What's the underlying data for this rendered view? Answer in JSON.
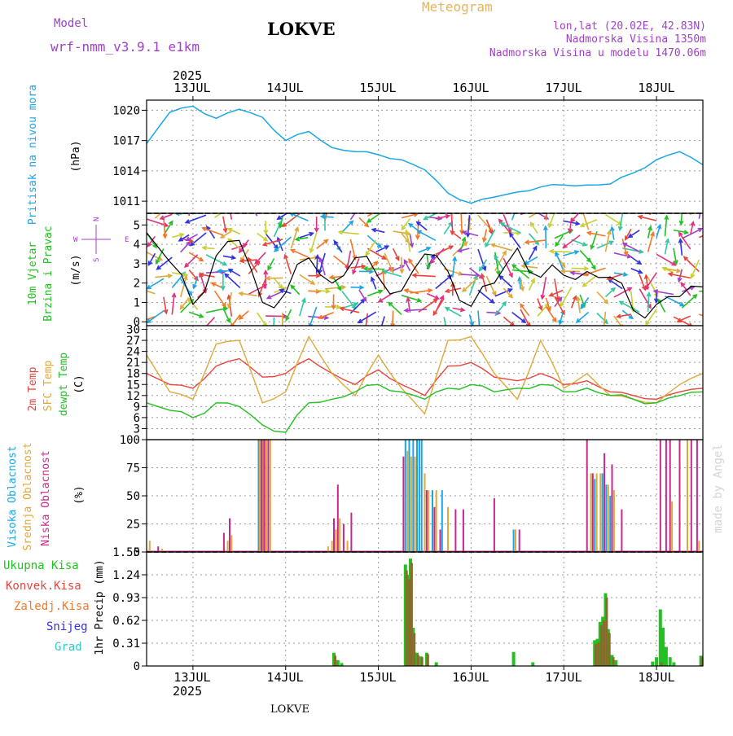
{
  "header": {
    "model_label": "Model",
    "model_name": "wrf-nmm_v3.9.1 e1km",
    "station": "LOKVE",
    "product": "Meteogram",
    "lonlat": "lon,lat (20.02E, 42.83N)",
    "altitude": "Nadmorska Visina 1350m",
    "model_altitude": "Nadmorska Visina u modelu 1470.06m",
    "watermark": "made by Angel",
    "footer_station": "LOKVE"
  },
  "colors": {
    "pressure": "#1aa6e6",
    "temp2m": "#e8443a",
    "sfc": "#e0a838",
    "dewpt": "#22c022",
    "high_cloud": "#1aa6e6",
    "mid_cloud": "#e0a838",
    "low_cloud": "#c8288c",
    "total_rain": "#22c022",
    "conv_rain": "#e8443a",
    "strat_rain": "#f07828",
    "snow": "#3030e0",
    "hail": "#30c8c8",
    "purple_text": "#a040c8",
    "gold_text": "#e6b45a"
  },
  "axis": {
    "year": "2025",
    "days": [
      "13JUL",
      "14JUL",
      "15JUL",
      "16JUL",
      "17JUL",
      "18JUL"
    ]
  },
  "panels": {
    "pressure": {
      "ylabel_name": "Pritisak na nivou mora",
      "unit": "(hPa)",
      "ticks": [
        "1011",
        "1014",
        "1017",
        "1020"
      ]
    },
    "wind": {
      "ylabel_name_1": "10m Vjetar",
      "ylabel_name_2": "Brzina i Pravac",
      "unit": "(m/s)",
      "compass_n": "N",
      "compass_w": "W",
      "compass_e": "E",
      "compass_s": "S",
      "ticks": [
        "0",
        "1",
        "2",
        "3",
        "4",
        "5"
      ]
    },
    "temperature": {
      "label_1": "2m Temp",
      "label_2": "SFC Temp",
      "label_3": "dewpt Temp",
      "unit": "(C)",
      "ticks": [
        "3",
        "6",
        "9",
        "12",
        "15",
        "18",
        "21",
        "24",
        "27",
        "30"
      ]
    },
    "cloud": {
      "label_1": "Visoka Oblacnost",
      "label_2": "Srednja Oblacnost",
      "label_3": "Niska Oblacnost",
      "unit": "(%)",
      "ticks": [
        "0",
        "25",
        "50",
        "75",
        "100"
      ]
    },
    "precip": {
      "legend_total": "Ukupna Kisa",
      "legend_conv": "Konvek.Kisa",
      "legend_strat": "Zaledj.Kisa",
      "legend_snow": "Snijeg",
      "legend_hail": "Grad",
      "unit": "1hr Precip (mm)",
      "ticks": [
        "0",
        "0.31",
        "0.62",
        "0.93",
        "1.24",
        "1.55"
      ]
    }
  },
  "chart_data": [
    {
      "type": "line",
      "title": "",
      "ylabel": "Pritisak na nivou mora (hPa)",
      "ylim": [
        1009.8,
        1021
      ],
      "xlim": [
        0,
        144
      ],
      "x": [
        0,
        6,
        12,
        18,
        24,
        30,
        36,
        42,
        48,
        54,
        60,
        66,
        72,
        78,
        84,
        90,
        96,
        102,
        108,
        114,
        120,
        126,
        132,
        138,
        144
      ],
      "series": [
        {
          "name": "",
          "values": [
            1016.7,
            1019.8,
            1020.4,
            1019.2,
            1020.1,
            1019.3,
            1017.0,
            1017.9,
            1016.3,
            1015.9,
            1015.6,
            1015.1,
            1014.1,
            1011.8,
            1010.8,
            1011.4,
            1011.9,
            1012.4,
            1012.6,
            1012.6,
            1012.7,
            1013.8,
            1015.1,
            1015.9,
            1014.6
          ]
        }
      ]
    },
    {
      "type": "line",
      "ylabel": "10m Vjetar Brzina i Pravac (m/s)",
      "ylim": [
        -0.2,
        5.6
      ],
      "xlim": [
        0,
        144
      ],
      "x": [
        0,
        6,
        12,
        18,
        24,
        30,
        36,
        42,
        48,
        54,
        60,
        66,
        72,
        78,
        84,
        90,
        96,
        102,
        108,
        114,
        120,
        126,
        132,
        138,
        144
      ],
      "series": [
        {
          "name": "",
          "values": [
            4.6,
            3.1,
            0.9,
            3.4,
            4.2,
            1.0,
            1.5,
            3.3,
            2.0,
            3.3,
            2.3,
            1.6,
            3.5,
            2.6,
            0.8,
            2.0,
            3.8,
            2.3,
            2.4,
            2.6,
            2.3,
            0.6,
            0.9,
            1.3,
            1.8
          ]
        }
      ]
    },
    {
      "type": "line",
      "ylabel": "(C)",
      "ylim": [
        0,
        31
      ],
      "xlim": [
        0,
        144
      ],
      "x": [
        0,
        6,
        12,
        18,
        24,
        30,
        36,
        42,
        48,
        54,
        60,
        66,
        72,
        78,
        84,
        90,
        96,
        102,
        108,
        114,
        120,
        126,
        132,
        138,
        144
      ],
      "series": [
        {
          "name": "2m Temp",
          "values": [
            18,
            15,
            14,
            20,
            22,
            17,
            18,
            22,
            18,
            15,
            19,
            15,
            12,
            20,
            21,
            17,
            16,
            18,
            15,
            16,
            13,
            12,
            11,
            13,
            14
          ]
        },
        {
          "name": "SFC Temp",
          "values": [
            23,
            13,
            11,
            26,
            27,
            10,
            13,
            28,
            18,
            12,
            23,
            14,
            7,
            27,
            28,
            18,
            11,
            27,
            14,
            18,
            12,
            11,
            10,
            15,
            18
          ]
        },
        {
          "name": "dewpt Temp",
          "values": [
            10,
            8,
            6,
            10,
            9,
            4,
            2,
            10,
            11,
            13,
            15,
            13,
            11,
            14,
            15,
            13,
            14,
            15,
            13,
            14,
            12,
            11,
            10,
            12,
            13
          ]
        }
      ]
    },
    {
      "type": "bar",
      "ylabel": "(%)",
      "ylim": [
        0,
        100
      ],
      "xlim": [
        0,
        144
      ],
      "series": [
        {
          "name": "Visoka Oblacnost",
          "points": [
            [
              29,
              100
            ],
            [
              29.6,
              100
            ],
            [
              30.2,
              100
            ],
            [
              67,
              100
            ],
            [
              68,
              100
            ],
            [
              69,
              100
            ],
            [
              70,
              100
            ],
            [
              70.6,
              100
            ],
            [
              71.2,
              100
            ],
            [
              74,
              55
            ],
            [
              76.5,
              55
            ],
            [
              95,
              20
            ],
            [
              116,
              65
            ],
            [
              118,
              70
            ],
            [
              119,
              60
            ],
            [
              120,
              50
            ]
          ]
        },
        {
          "name": "Srednja Oblacnost",
          "points": [
            [
              0.8,
              10
            ],
            [
              4,
              3
            ],
            [
              21,
              10
            ],
            [
              22,
              15
            ],
            [
              29.3,
              100
            ],
            [
              30,
              100
            ],
            [
              31,
              100
            ],
            [
              32,
              100
            ],
            [
              47,
              5
            ],
            [
              48,
              10
            ],
            [
              49,
              20
            ],
            [
              50,
              30
            ],
            [
              52,
              10
            ],
            [
              67.5,
              90
            ],
            [
              68.5,
              85
            ],
            [
              69.5,
              85
            ],
            [
              72,
              70
            ],
            [
              73,
              55
            ],
            [
              75,
              55
            ],
            [
              78,
              40
            ],
            [
              95.5,
              20
            ],
            [
              115,
              70
            ],
            [
              116.5,
              70
            ],
            [
              117.5,
              70
            ],
            [
              119.5,
              60
            ],
            [
              121,
              55
            ],
            [
              136,
              45
            ],
            [
              140,
              100
            ],
            [
              143,
              10
            ]
          ]
        },
        {
          "name": "Niska Oblacnost",
          "points": [
            [
              3,
              5
            ],
            [
              20,
              17
            ],
            [
              21.5,
              30
            ],
            [
              29.8,
              100
            ],
            [
              30.5,
              100
            ],
            [
              31.5,
              100
            ],
            [
              48.5,
              30
            ],
            [
              49.5,
              60
            ],
            [
              51,
              25
            ],
            [
              53,
              35
            ],
            [
              66.5,
              85
            ],
            [
              72.5,
              55
            ],
            [
              74.5,
              40
            ],
            [
              76,
              20
            ],
            [
              80,
              38
            ],
            [
              82,
              38
            ],
            [
              90,
              48
            ],
            [
              96.5,
              20
            ],
            [
              114,
              100
            ],
            [
              115.5,
              70
            ],
            [
              118.5,
              88
            ],
            [
              120.5,
              78
            ],
            [
              123,
              38
            ],
            [
              133,
              100
            ],
            [
              134.5,
              100
            ],
            [
              135.5,
              100
            ],
            [
              138,
              100
            ],
            [
              141,
              100
            ],
            [
              142.5,
              100
            ]
          ]
        }
      ]
    },
    {
      "type": "bar",
      "ylabel": "1hr Precip (mm)",
      "ylim": [
        0,
        1.55
      ],
      "xlim": [
        0,
        144
      ],
      "series": [
        {
          "name": "Ukupna Kisa",
          "points": [
            [
              48.5,
              0.18
            ],
            [
              49.5,
              0.08
            ],
            [
              50.5,
              0.04
            ],
            [
              67,
              1.38
            ],
            [
              67.7,
              1.24
            ],
            [
              68.3,
              1.46
            ],
            [
              69,
              0.52
            ],
            [
              70,
              0.18
            ],
            [
              71,
              0.13
            ],
            [
              72.5,
              0.18
            ],
            [
              75,
              0.05
            ],
            [
              95,
              0.19
            ],
            [
              100,
              0.05
            ],
            [
              116,
              0.35
            ],
            [
              116.7,
              0.37
            ],
            [
              117.4,
              0.6
            ],
            [
              118.1,
              0.67
            ],
            [
              118.8,
              0.99
            ],
            [
              119.5,
              0.5
            ],
            [
              120.5,
              0.15
            ],
            [
              121.5,
              0.08
            ],
            [
              131,
              0.06
            ],
            [
              132,
              0.12
            ],
            [
              133,
              0.77
            ],
            [
              133.7,
              0.52
            ],
            [
              134.5,
              0.26
            ],
            [
              135.5,
              0.12
            ],
            [
              136.5,
              0.05
            ],
            [
              143.5,
              0.14
            ]
          ]
        },
        {
          "name": "Konvek.Kisa",
          "points": [
            [
              48.8,
              0.14
            ],
            [
              67.3,
              1.3
            ],
            [
              68,
              1.18
            ],
            [
              68.6,
              1.4
            ],
            [
              69.3,
              0.45
            ],
            [
              70.3,
              0.15
            ],
            [
              71.3,
              0.12
            ],
            [
              72.8,
              0.16
            ],
            [
              116.3,
              0.3
            ],
            [
              117,
              0.32
            ],
            [
              117.7,
              0.55
            ],
            [
              118.4,
              0.62
            ],
            [
              119.1,
              0.93
            ],
            [
              119.8,
              0.45
            ],
            [
              120.8,
              0.12
            ],
            [
              133.3,
              0.05
            ],
            [
              143.8,
              0.12
            ]
          ]
        }
      ]
    }
  ]
}
